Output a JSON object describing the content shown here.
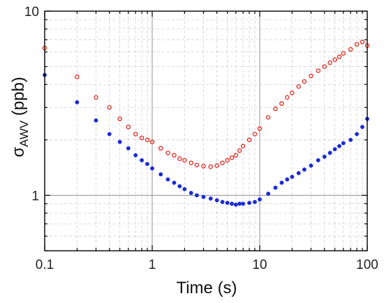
{
  "chart_data": {
    "type": "scatter",
    "xlabel": "Time (s)",
    "ylabel": {
      "prefix": "σ",
      "subscript": "AWV",
      "suffix": " (ppb)"
    },
    "x_scale": "log",
    "y_scale": "log",
    "xlim": [
      0.1,
      100
    ],
    "ylim": [
      0.5,
      10
    ],
    "x_tick_labels": [
      {
        "value": 0.1,
        "label": "0.1"
      },
      {
        "value": 1,
        "label": "1"
      },
      {
        "value": 10,
        "label": "10"
      },
      {
        "value": 100,
        "label": "100"
      }
    ],
    "y_tick_labels": [
      {
        "value": 1,
        "label": "1"
      },
      {
        "value": 10,
        "label": "10"
      }
    ],
    "grid": true,
    "series": [
      {
        "marker": "open-circle",
        "color": "#e0241b",
        "x": [
          0.1,
          0.2,
          0.3,
          0.4,
          0.5,
          0.6,
          0.7,
          0.8,
          0.9,
          1.0,
          1.2,
          1.4,
          1.6,
          1.8,
          2.0,
          2.3,
          2.6,
          3.0,
          3.5,
          4.0,
          4.5,
          5.0,
          5.5,
          6.0,
          6.5,
          7.0,
          8.0,
          9.0,
          10,
          12,
          14,
          16,
          18,
          20,
          23,
          26,
          30,
          35,
          40,
          45,
          50,
          55,
          60,
          70,
          80,
          90,
          100
        ],
        "y": [
          6.3,
          4.4,
          3.4,
          3.0,
          2.6,
          2.35,
          2.15,
          2.05,
          2.0,
          1.95,
          1.8,
          1.7,
          1.65,
          1.58,
          1.55,
          1.5,
          1.46,
          1.44,
          1.43,
          1.45,
          1.5,
          1.55,
          1.6,
          1.65,
          1.75,
          1.85,
          2.0,
          2.15,
          2.3,
          2.65,
          2.95,
          3.15,
          3.4,
          3.6,
          3.9,
          4.15,
          4.45,
          4.75,
          5.0,
          5.25,
          5.45,
          5.65,
          5.9,
          6.2,
          6.6,
          6.8,
          6.5
        ]
      },
      {
        "marker": "filled-circle",
        "color": "#1a2bd6",
        "x": [
          0.1,
          0.2,
          0.3,
          0.4,
          0.5,
          0.6,
          0.7,
          0.8,
          0.9,
          1.0,
          1.2,
          1.4,
          1.6,
          1.8,
          2.0,
          2.3,
          2.6,
          3.0,
          3.5,
          4.0,
          4.5,
          5.0,
          5.5,
          6.0,
          6.5,
          7.0,
          8.0,
          9.0,
          10,
          12,
          14,
          16,
          18,
          20,
          23,
          26,
          30,
          35,
          40,
          45,
          50,
          55,
          60,
          70,
          80,
          90,
          100
        ],
        "y": [
          4.5,
          3.2,
          2.55,
          2.15,
          1.95,
          1.8,
          1.65,
          1.55,
          1.48,
          1.4,
          1.3,
          1.22,
          1.17,
          1.12,
          1.08,
          1.03,
          1.0,
          0.98,
          0.96,
          0.94,
          0.92,
          0.91,
          0.9,
          0.89,
          0.9,
          0.9,
          0.91,
          0.92,
          0.95,
          1.02,
          1.1,
          1.17,
          1.22,
          1.26,
          1.32,
          1.38,
          1.45,
          1.55,
          1.62,
          1.7,
          1.78,
          1.85,
          1.92,
          2.0,
          2.15,
          2.35,
          2.6
        ]
      }
    ]
  }
}
